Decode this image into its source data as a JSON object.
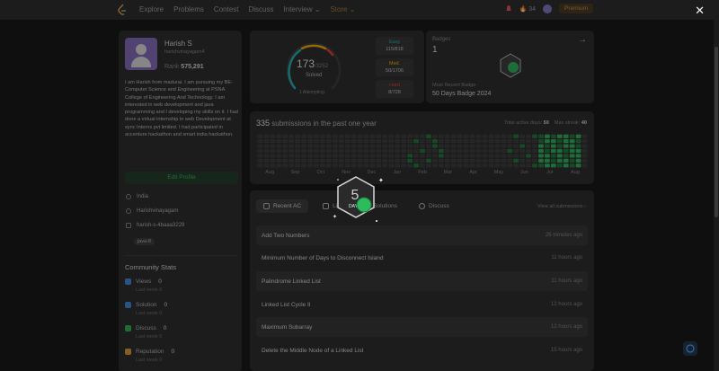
{
  "nav": {
    "links": [
      "Explore",
      "Problems",
      "Contest",
      "Discuss",
      "Interview ⌄",
      "Store ⌄"
    ],
    "streak": "34",
    "premium": "Premium"
  },
  "profile": {
    "name": "Harish S",
    "username": "harishvinayagam4",
    "rank_label": "Rank",
    "rank_value": "575,291",
    "bio": "I am Harish from madurai. I am pursuing my BE-Computer Science and Engineering at PSNA College of Engineering And Technology. I am interested in web development and java programming and I developing my skills on it. I had done a virtual internship in web Development at sync Interns pvt limited. I had participated in accenture hackathon and smart india hackathon.",
    "edit_label": "Edit Profile",
    "location": "India",
    "github": "Harishvinayagam",
    "linkedin": "harish-s-4baaa3229",
    "skill": "java-8"
  },
  "community": {
    "title": "Community Stats",
    "stats": [
      {
        "label": "Views",
        "value": "0",
        "sub": "Last week 0",
        "color": "#3b8ee8"
      },
      {
        "label": "Solution",
        "value": "0",
        "sub": "Last week 0",
        "color": "#3b8ee8"
      },
      {
        "label": "Discuss",
        "value": "0",
        "sub": "Last week 0",
        "color": "#2cbb5d"
      },
      {
        "label": "Reputation",
        "value": "0",
        "sub": "Last week 0",
        "color": "#e8a23b"
      }
    ]
  },
  "solved": {
    "count": "173",
    "total": "/3252",
    "label": "Solved",
    "attempting": "1 Attempting",
    "easy": {
      "label": "Easy",
      "value": "115/818",
      "color": "#1cbaba"
    },
    "medium": {
      "label": "Med.",
      "value": "50/1706",
      "color": "#ffb700"
    },
    "hard": {
      "label": "Hard",
      "value": "8/728",
      "color": "#f63737"
    }
  },
  "badges": {
    "label": "Badges",
    "count": "1",
    "recent_label": "Most Recent Badge",
    "recent_name": "50 Days Badge 2024"
  },
  "submissions": {
    "count": "335",
    "title_rest": "submissions in the past one year",
    "active_label": "Total active days:",
    "active_value": "50",
    "streak_label": "Max streak:",
    "streak_value": "40",
    "months": [
      "Aug",
      "Sep",
      "Oct",
      "Nov",
      "Dec",
      "Jan",
      "Feb",
      "Mar",
      "Apr",
      "May",
      "Jun",
      "Jul",
      "Aug"
    ]
  },
  "recent": {
    "tabs": [
      "Recent AC",
      "List",
      "Solutions",
      "Discuss"
    ],
    "view_all": "View all submissions ›",
    "rows": [
      {
        "title": "Add Two Numbers",
        "time": "26 minutes ago"
      },
      {
        "title": "Minimum Number of Days to Disconnect Island",
        "time": "11 hours ago"
      },
      {
        "title": "Palindrome Linked List",
        "time": "11 hours ago"
      },
      {
        "title": "Linked List Cycle II",
        "time": "12 hours ago"
      },
      {
        "title": "Maximum Subarray",
        "time": "12 hours ago"
      },
      {
        "title": "Delete the Middle Node of a Linked List",
        "time": "15 hours ago"
      }
    ]
  },
  "popup": {
    "badge_text": "DAYS"
  }
}
